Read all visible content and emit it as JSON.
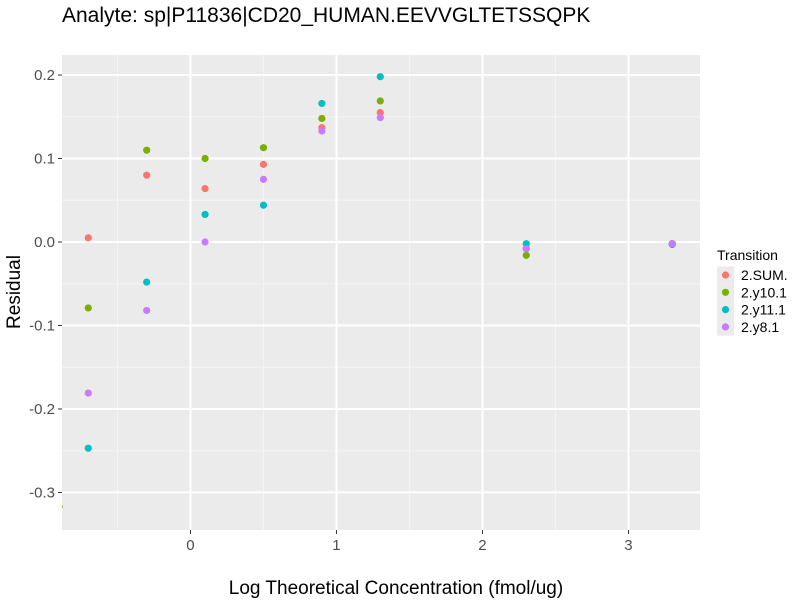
{
  "chart_data": {
    "type": "scatter",
    "title": "Analyte: sp|P11836|CD20_HUMAN.EEVVGLTETSSQPK",
    "xlabel": "Log Theoretical Concentration (fmol/ug)",
    "ylabel": "Residual",
    "xlim": [
      -0.88,
      3.49
    ],
    "ylim": [
      -0.345,
      0.224
    ],
    "xticks": [
      0,
      1,
      2,
      3
    ],
    "xtick_labels": [
      "0",
      "1",
      "2",
      "3"
    ],
    "yticks": [
      0.2,
      0.1,
      0.0,
      -0.1,
      -0.2,
      -0.3
    ],
    "ytick_labels": [
      "0.2",
      "0.1",
      "0.0",
      "-0.1",
      "-0.2",
      "-0.3"
    ],
    "grid": true,
    "legend": {
      "title": "Transition",
      "placement": "right"
    },
    "x": [
      -0.9,
      -0.7,
      -0.3,
      0.1,
      0.5,
      0.9,
      1.3,
      2.3,
      3.3
    ],
    "series": [
      {
        "name": "2.SUM.",
        "color": "#F8766D",
        "values": [
          null,
          0.005,
          0.08,
          0.064,
          0.093,
          0.137,
          0.155,
          -0.008,
          -0.002
        ]
      },
      {
        "name": "2.y10.1",
        "color": "#7CAE00",
        "values": [
          -0.317,
          -0.079,
          0.11,
          0.1,
          0.113,
          0.148,
          0.169,
          -0.016,
          -0.002
        ]
      },
      {
        "name": "2.y11.1",
        "color": "#00BFC4",
        "values": [
          null,
          -0.247,
          -0.048,
          0.033,
          0.044,
          0.166,
          0.198,
          -0.002,
          -0.003
        ]
      },
      {
        "name": "2.y8.1",
        "color": "#C77CFF",
        "values": [
          null,
          -0.181,
          -0.082,
          0.0,
          0.075,
          0.133,
          0.149,
          -0.008,
          -0.002
        ]
      }
    ]
  }
}
